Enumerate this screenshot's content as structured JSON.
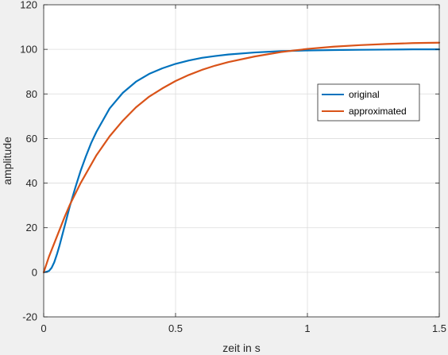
{
  "chart_data": {
    "type": "line",
    "xlabel": "zeit in s",
    "ylabel": "amplitude",
    "xlim": [
      0,
      1.5
    ],
    "ylim": [
      -20,
      120
    ],
    "xticks": [
      0,
      0.5,
      1,
      1.5
    ],
    "xtick_labels": [
      "0",
      "0.5",
      "1",
      "1.5"
    ],
    "yticks": [
      -20,
      0,
      20,
      40,
      60,
      80,
      100,
      120
    ],
    "ytick_labels": [
      "-20",
      "0",
      "20",
      "40",
      "60",
      "80",
      "100",
      "120"
    ],
    "grid": true,
    "legend_position": "right",
    "series": [
      {
        "name": "original",
        "color": "#0072bd",
        "x": [
          0,
          0.01,
          0.02,
          0.03,
          0.04,
          0.05,
          0.06,
          0.08,
          0.1,
          0.12,
          0.14,
          0.16,
          0.18,
          0.2,
          0.25,
          0.3,
          0.35,
          0.4,
          0.45,
          0.5,
          0.55,
          0.6,
          0.65,
          0.7,
          0.8,
          0.9,
          1.0,
          1.1,
          1.2,
          1.3,
          1.4,
          1.5
        ],
        "y": [
          0,
          0.2,
          0.6,
          2.0,
          4.5,
          8.0,
          12.0,
          21.0,
          30.0,
          38.0,
          45.5,
          52.0,
          58.0,
          63.0,
          73.5,
          80.5,
          85.5,
          89.0,
          91.5,
          93.5,
          95.0,
          96.2,
          97.0,
          97.7,
          98.6,
          99.2,
          99.5,
          99.7,
          99.8,
          99.9,
          100.0,
          100.0
        ]
      },
      {
        "name": "approximated",
        "color": "#d95319",
        "x": [
          0,
          0.02,
          0.05,
          0.08,
          0.1,
          0.14,
          0.2,
          0.25,
          0.3,
          0.35,
          0.4,
          0.45,
          0.5,
          0.55,
          0.6,
          0.65,
          0.7,
          0.8,
          0.9,
          1.0,
          1.1,
          1.2,
          1.3,
          1.4,
          1.5
        ],
        "y": [
          0,
          7.0,
          16.0,
          25.0,
          30.5,
          40.0,
          52.5,
          61.0,
          68.0,
          74.0,
          78.8,
          82.5,
          85.8,
          88.5,
          90.8,
          92.7,
          94.3,
          96.8,
          98.8,
          100.2,
          101.2,
          101.9,
          102.4,
          102.8,
          103.0
        ]
      }
    ]
  }
}
